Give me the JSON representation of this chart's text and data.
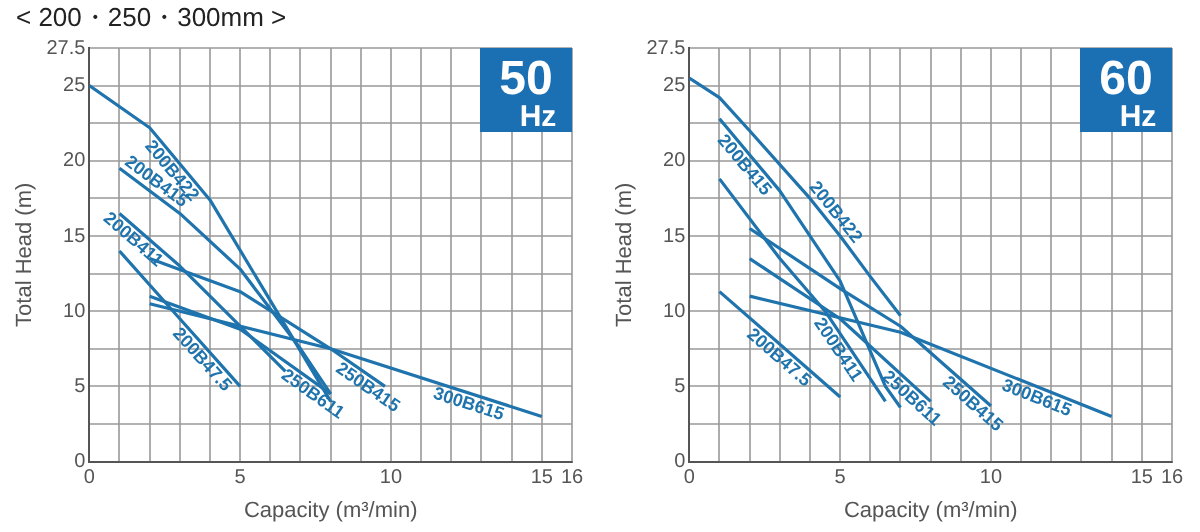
{
  "chart_data": [
    {
      "type": "line",
      "title": "< 200・250・300mm >",
      "xlabel": "Capacity (m³/min)",
      "ylabel": "Total Head (m)",
      "annotations": [
        "50 Hz"
      ],
      "grid": true,
      "legend": false,
      "marker": "none",
      "line_style": "solid",
      "xlim": [
        0,
        16
      ],
      "ylim": [
        0,
        27.5
      ],
      "xticks": [
        0,
        {
          "value": 1,
          "label": null
        },
        {
          "value": 2,
          "label": null
        },
        {
          "value": 3,
          "label": null
        },
        {
          "value": 4,
          "label": null
        },
        5,
        {
          "value": 6,
          "label": null
        },
        {
          "value": 7,
          "label": null
        },
        {
          "value": 8,
          "label": null
        },
        {
          "value": 9,
          "label": null
        },
        10,
        {
          "value": 11,
          "label": null
        },
        {
          "value": 12,
          "label": null
        },
        {
          "value": 13,
          "label": null
        },
        {
          "value": 14,
          "label": null
        },
        15,
        16
      ],
      "yticks": [
        0,
        {
          "value": 2.5,
          "label": null
        },
        5,
        {
          "value": 7.5,
          "label": null
        },
        10,
        {
          "value": 12.5,
          "label": null
        },
        15,
        {
          "value": 17.5,
          "label": null
        },
        20,
        {
          "value": 22.5,
          "label": null
        },
        25,
        27.5
      ],
      "series": [
        {
          "name": "200B422",
          "color": "#1f74ad",
          "x": [
            0,
            2,
            4,
            6,
            8
          ],
          "values": [
            25,
            22.2,
            17.4,
            10.7,
            4
          ]
        },
        {
          "name": "200B415",
          "color": "#1f74ad",
          "x": [
            1,
            3,
            5,
            7,
            8
          ],
          "values": [
            19.5,
            16.5,
            12.8,
            7.5,
            4.5
          ]
        },
        {
          "name": "200B411",
          "color": "#1f74ad",
          "x": [
            1,
            3,
            5,
            6.5
          ],
          "values": [
            16.5,
            13,
            9,
            6
          ]
        },
        {
          "name": "200B47.5",
          "color": "#1f74ad",
          "x": [
            1,
            3,
            5
          ],
          "values": [
            14,
            9.5,
            5
          ]
        },
        {
          "name": "250B611",
          "color": "#1f74ad",
          "x": [
            2,
            5,
            8
          ],
          "values": [
            11,
            8.8,
            4.5
          ]
        },
        {
          "name": "250B415",
          "color": "#1f74ad",
          "x": [
            2,
            5,
            8,
            9.8
          ],
          "values": [
            13.5,
            11.3,
            7.5,
            5
          ]
        },
        {
          "name": "300B615",
          "color": "#1f74ad",
          "x": [
            2,
            8,
            15
          ],
          "values": [
            10.5,
            7.5,
            3
          ]
        }
      ]
    },
    {
      "type": "line",
      "xlabel": "Capacity (m³/min)",
      "ylabel": "Total Head (m)",
      "annotations": [
        "60 Hz"
      ],
      "grid": true,
      "legend": false,
      "marker": "none",
      "line_style": "solid",
      "xlim": [
        0,
        16
      ],
      "ylim": [
        0,
        27.5
      ],
      "xticks": [
        0,
        {
          "value": 1,
          "label": null
        },
        {
          "value": 2,
          "label": null
        },
        {
          "value": 3,
          "label": null
        },
        {
          "value": 4,
          "label": null
        },
        5,
        {
          "value": 6,
          "label": null
        },
        {
          "value": 7,
          "label": null
        },
        {
          "value": 8,
          "label": null
        },
        {
          "value": 9,
          "label": null
        },
        10,
        {
          "value": 11,
          "label": null
        },
        {
          "value": 12,
          "label": null
        },
        {
          "value": 13,
          "label": null
        },
        {
          "value": 14,
          "label": null
        },
        15,
        16
      ],
      "yticks": [
        0,
        {
          "value": 2.5,
          "label": null
        },
        5,
        {
          "value": 7.5,
          "label": null
        },
        10,
        {
          "value": 12.5,
          "label": null
        },
        15,
        {
          "value": 17.5,
          "label": null
        },
        20,
        {
          "value": 22.5,
          "label": null
        },
        25,
        27.5
      ],
      "series": [
        {
          "name": "200B422",
          "color": "#1f74ad",
          "x": [
            0,
            1,
            2,
            4,
            5,
            6,
            7
          ],
          "values": [
            25.5,
            24.2,
            22,
            17.5,
            15,
            12.3,
            9.7
          ]
        },
        {
          "name": "200B415",
          "color": "#1f74ad",
          "x": [
            1,
            3,
            5,
            6.5,
            7
          ],
          "values": [
            22.8,
            18,
            12,
            5,
            3.6
          ]
        },
        {
          "name": "200B411",
          "color": "#1f74ad",
          "x": [
            1,
            3,
            4.5,
            6.5
          ],
          "values": [
            18.8,
            13.5,
            10,
            4
          ]
        },
        {
          "name": "200B47.5",
          "color": "#1f74ad",
          "x": [
            1,
            5
          ],
          "values": [
            11.3,
            4.3
          ]
        },
        {
          "name": "250B611",
          "color": "#1f74ad",
          "x": [
            2,
            5,
            8
          ],
          "values": [
            13.5,
            9.5,
            4
          ]
        },
        {
          "name": "250B415",
          "color": "#1f74ad",
          "x": [
            2,
            5,
            7,
            10
          ],
          "values": [
            15.5,
            11.5,
            9,
            3.7
          ]
        },
        {
          "name": "300B615",
          "color": "#1f74ad",
          "x": [
            2,
            7,
            14
          ],
          "values": [
            11,
            8.6,
            3
          ]
        }
      ]
    }
  ]
}
